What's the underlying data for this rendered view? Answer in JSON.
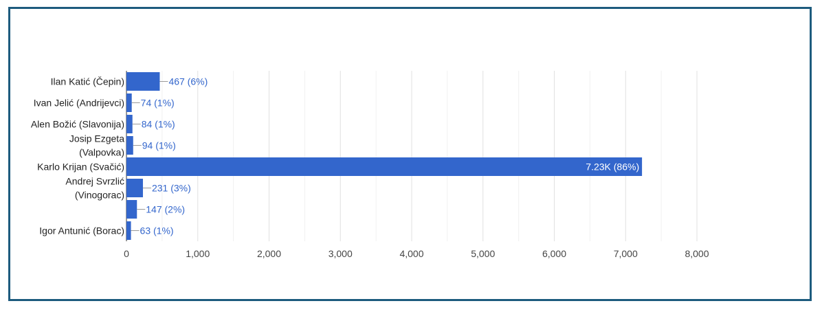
{
  "chart_data": {
    "type": "bar",
    "orientation": "horizontal",
    "categories": [
      [
        "Ilan Katić (Čepin)"
      ],
      [
        "Ivan Jelić (Andrijevci)"
      ],
      [
        "Alen Božić (Slavonija)"
      ],
      [
        "Josip Ezgeta",
        "(Valpovka)"
      ],
      [
        "Karlo Krijan (Svačić)"
      ],
      [
        "Andrej Svrzlić",
        "(Vinogorac)"
      ],
      [],
      [
        "Igor Antunić (Borac)"
      ]
    ],
    "values": [
      467,
      74,
      84,
      94,
      7230,
      231,
      147,
      63
    ],
    "data_labels": [
      "467 (6%)",
      "74 (1%)",
      "84 (1%)",
      "94 (1%)",
      "7.23K (86%)",
      "231 (3%)",
      "147 (2%)",
      "63 (1%)"
    ],
    "xlim": [
      0,
      8000
    ],
    "x_ticks": [
      0,
      1000,
      2000,
      3000,
      4000,
      5000,
      6000,
      7000,
      8000
    ],
    "x_tick_labels": [
      "0",
      "1,000",
      "2,000",
      "3,000",
      "4,000",
      "5,000",
      "6,000",
      "7,000",
      "8,000"
    ],
    "grid": true,
    "colors": {
      "bar": "#3366cc",
      "label_outside": "#3366cc",
      "label_inside": "#ffffff",
      "grid": "#e0e0e0",
      "axis": "#333333",
      "frame": "#1d5b7e"
    }
  }
}
